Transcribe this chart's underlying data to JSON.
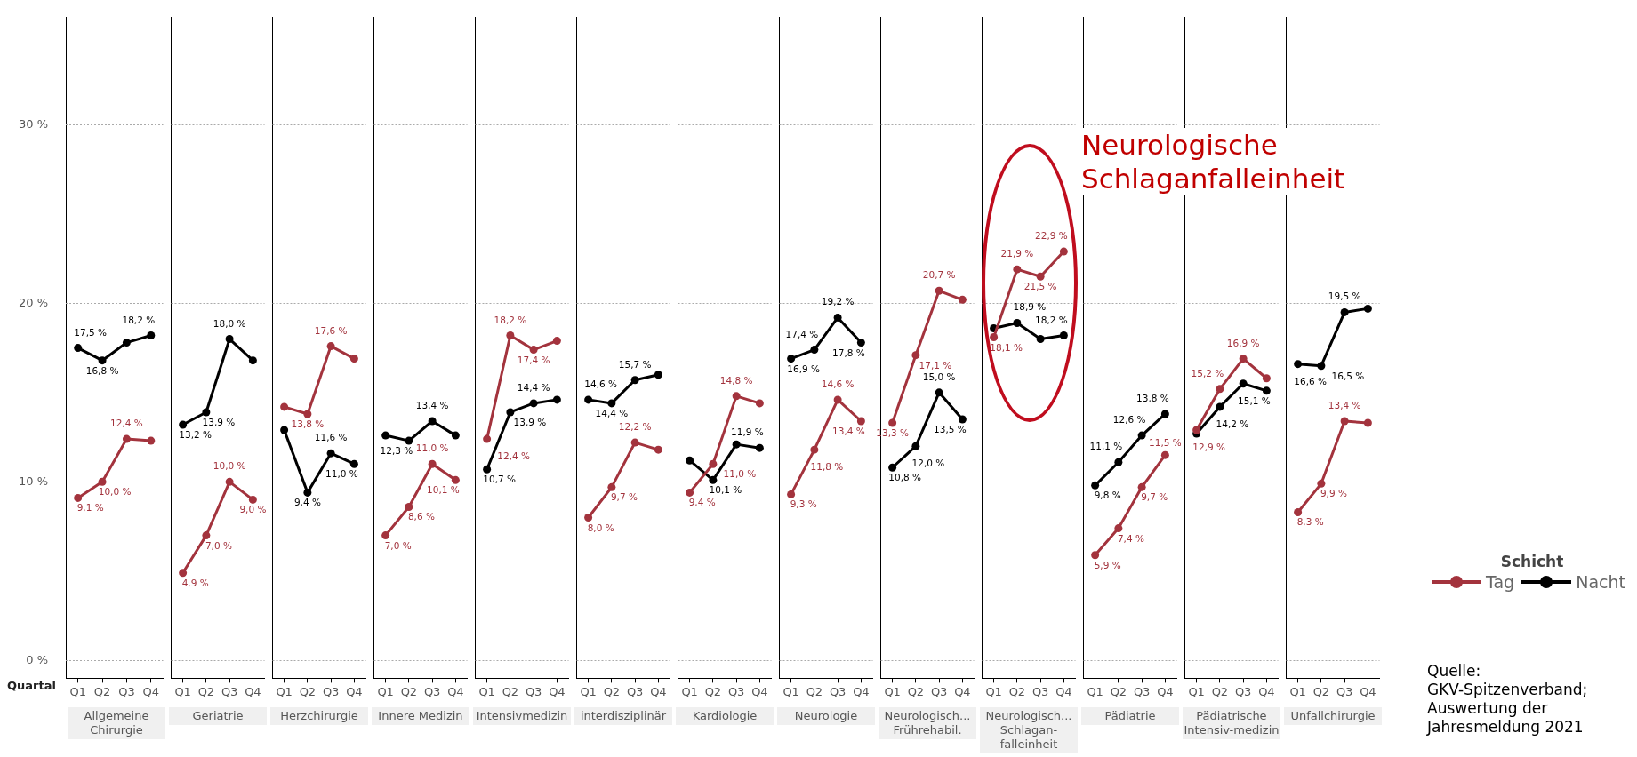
{
  "chart_data": [
    {
      "type": "line",
      "xlabel": "Allgemeine Chirurgie",
      "categories": [
        "Q1",
        "Q2",
        "Q3",
        "Q4"
      ],
      "ylim": [
        -1,
        36
      ],
      "yticks": [
        {
          "value": 0,
          "label": "0 %"
        },
        {
          "value": 10,
          "label": "10 %"
        },
        {
          "value": 20,
          "label": "20 %"
        },
        {
          "value": 30,
          "label": "30 %"
        }
      ],
      "grid": "y",
      "marker": "circle",
      "annotations": [
        "Quartal"
      ],
      "series": [
        {
          "color": "#a3333d",
          "values": [
            9.1,
            10.0,
            12.4,
            12.3
          ],
          "value_labels": [
            "9,1 %",
            "10,0 %",
            "12,4 %",
            null
          ]
        },
        {
          "color": "#000000",
          "values": [
            17.5,
            16.8,
            17.8,
            18.2
          ],
          "value_labels": [
            "17,5 %",
            "16,8 %",
            null,
            "18,2 %"
          ]
        }
      ]
    },
    {
      "type": "line",
      "xlabel": "Geriatrie",
      "categories": [
        "Q1",
        "Q2",
        "Q3",
        "Q4"
      ],
      "ylim": [
        -1,
        36
      ],
      "yticks": [
        0,
        10,
        20,
        30
      ],
      "grid": "y",
      "marker": "circle",
      "tick_labels": "x",
      "series": [
        {
          "color": "#a3333d",
          "values": [
            4.9,
            7.0,
            10.0,
            9.0
          ],
          "value_labels": [
            "4,9 %",
            "7,0 %",
            "10,0 %",
            "9,0 %"
          ]
        },
        {
          "color": "#000000",
          "values": [
            13.2,
            13.9,
            18.0,
            16.8
          ],
          "value_labels": [
            "13,2 %",
            "13,9 %",
            "18,0 %",
            null
          ]
        }
      ]
    },
    {
      "type": "line",
      "xlabel": "Herzchirurgie",
      "categories": [
        "Q1",
        "Q2",
        "Q3",
        "Q4"
      ],
      "ylim": [
        -1,
        36
      ],
      "yticks": [
        0,
        10,
        20,
        30
      ],
      "grid": "y",
      "marker": "circle",
      "tick_labels": "x",
      "series": [
        {
          "color": "#a3333d",
          "values": [
            14.2,
            13.8,
            17.6,
            16.9
          ],
          "value_labels": [
            null,
            "13,8 %",
            "17,6 %",
            null
          ]
        },
        {
          "color": "#000000",
          "values": [
            12.9,
            9.4,
            11.6,
            11.0
          ],
          "value_labels": [
            null,
            "9,4 %",
            "11,6 %",
            "11,0 %"
          ]
        }
      ]
    },
    {
      "type": "line",
      "xlabel": "Innere Medizin",
      "categories": [
        "Q1",
        "Q2",
        "Q3",
        "Q4"
      ],
      "ylim": [
        -1,
        36
      ],
      "yticks": [
        0,
        10,
        20,
        30
      ],
      "grid": "y",
      "marker": "circle",
      "tick_labels": "x",
      "series": [
        {
          "color": "#a3333d",
          "values": [
            7.0,
            8.6,
            11.0,
            10.1
          ],
          "value_labels": [
            "7,0 %",
            "8,6 %",
            "11,0 %",
            "10,1 %"
          ]
        },
        {
          "color": "#000000",
          "values": [
            12.6,
            12.3,
            13.4,
            12.6
          ],
          "value_labels": [
            null,
            "12,3 %",
            "13,4 %",
            null
          ]
        }
      ]
    },
    {
      "type": "line",
      "xlabel": "Intensivmedizin",
      "categories": [
        "Q1",
        "Q2",
        "Q3",
        "Q4"
      ],
      "ylim": [
        -1,
        36
      ],
      "yticks": [
        0,
        10,
        20,
        30
      ],
      "grid": "y",
      "marker": "circle",
      "tick_labels": "x",
      "series": [
        {
          "color": "#a3333d",
          "values": [
            12.4,
            18.2,
            17.4,
            17.9
          ],
          "value_labels": [
            "12,4 %",
            "18,2 %",
            "17,4 %",
            null
          ]
        },
        {
          "color": "#000000",
          "values": [
            10.7,
            13.9,
            14.4,
            14.6
          ],
          "value_labels": [
            "10,7 %",
            "13,9 %",
            "14,4 %",
            null
          ]
        }
      ]
    },
    {
      "type": "line",
      "xlabel": "interdisziplinär",
      "categories": [
        "Q1",
        "Q2",
        "Q3",
        "Q4"
      ],
      "ylim": [
        -1,
        36
      ],
      "yticks": [
        0,
        10,
        20,
        30
      ],
      "grid": "y",
      "marker": "circle",
      "tick_labels": "x",
      "series": [
        {
          "color": "#a3333d",
          "values": [
            8.0,
            9.7,
            12.2,
            11.8
          ],
          "value_labels": [
            "8,0 %",
            "9,7 %",
            "12,2 %",
            null
          ]
        },
        {
          "color": "#000000",
          "values": [
            14.6,
            14.4,
            15.7,
            16.0
          ],
          "value_labels": [
            "14,6 %",
            "14,4 %",
            "15,7 %",
            null
          ]
        }
      ]
    },
    {
      "type": "line",
      "xlabel": "Kardiologie",
      "categories": [
        "Q1",
        "Q2",
        "Q3",
        "Q4"
      ],
      "ylim": [
        -1,
        36
      ],
      "yticks": [
        0,
        10,
        20,
        30
      ],
      "grid": "y",
      "marker": "circle",
      "tick_labels": "x",
      "series": [
        {
          "color": "#a3333d",
          "values": [
            9.4,
            11.0,
            14.8,
            14.4
          ],
          "value_labels": [
            "9,4 %",
            "11,0 %",
            "14,8 %",
            null
          ]
        },
        {
          "color": "#000000",
          "values": [
            11.2,
            10.1,
            12.1,
            11.9
          ],
          "value_labels": [
            null,
            "10,1 %",
            null,
            "11,9 %"
          ]
        }
      ]
    },
    {
      "type": "line",
      "xlabel": "Neurologie",
      "categories": [
        "Q1",
        "Q2",
        "Q3",
        "Q4"
      ],
      "ylim": [
        -1,
        36
      ],
      "yticks": [
        0,
        10,
        20,
        30
      ],
      "grid": "y",
      "marker": "circle",
      "tick_labels": "x",
      "series": [
        {
          "color": "#a3333d",
          "values": [
            9.3,
            11.8,
            14.6,
            13.4
          ],
          "value_labels": [
            "9,3 %",
            "11,8 %",
            "14,6 %",
            "13,4 %"
          ]
        },
        {
          "color": "#000000",
          "values": [
            16.9,
            17.4,
            19.2,
            17.8
          ],
          "value_labels": [
            "16,9 %",
            "17,4 %",
            "19,2 %",
            "17,8 %"
          ]
        }
      ]
    },
    {
      "type": "line",
      "xlabel": "Neurologisch... Frührehabil.",
      "categories": [
        "Q1",
        "Q2",
        "Q3",
        "Q4"
      ],
      "ylim": [
        -1,
        36
      ],
      "yticks": [
        0,
        10,
        20,
        30
      ],
      "grid": "y",
      "marker": "circle",
      "tick_labels": "x",
      "series": [
        {
          "color": "#a3333d",
          "values": [
            13.3,
            17.1,
            20.7,
            20.2
          ],
          "value_labels": [
            "13,3 %",
            "17,1 %",
            "20,7 %",
            null
          ]
        },
        {
          "color": "#000000",
          "values": [
            10.8,
            12.0,
            15.0,
            13.5
          ],
          "value_labels": [
            "10,8 %",
            "12,0 %",
            "15,0 %",
            "13,5 %"
          ]
        }
      ]
    },
    {
      "type": "line",
      "xlabel": "Neurologisch... Schlagan-falleinheit",
      "categories": [
        "Q1",
        "Q2",
        "Q3",
        "Q4"
      ],
      "ylim": [
        -1,
        36
      ],
      "yticks": [
        0,
        10,
        20,
        30
      ],
      "grid": "y",
      "marker": "circle",
      "tick_labels": "x",
      "annotations": [
        "Neurologische Schlaganfalleinheit"
      ],
      "series": [
        {
          "color": "#a3333d",
          "values": [
            18.1,
            21.9,
            21.5,
            22.9
          ],
          "value_labels": [
            "18,1 %",
            "21,9 %",
            "21,5 %",
            "22,9 %"
          ]
        },
        {
          "color": "#000000",
          "values": [
            18.6,
            18.9,
            18.0,
            18.2
          ],
          "value_labels": [
            null,
            "18,9 %",
            null,
            "18,2 %"
          ]
        }
      ]
    },
    {
      "type": "line",
      "xlabel": "Pädiatrie",
      "categories": [
        "Q1",
        "Q2",
        "Q3",
        "Q4"
      ],
      "ylim": [
        -1,
        36
      ],
      "yticks": [
        0,
        10,
        20,
        30
      ],
      "grid": "y",
      "marker": "circle",
      "tick_labels": "x",
      "series": [
        {
          "color": "#a3333d",
          "values": [
            5.9,
            7.4,
            9.7,
            11.5
          ],
          "value_labels": [
            "5,9 %",
            "7,4 %",
            "9,7 %",
            "11,5 %"
          ]
        },
        {
          "color": "#000000",
          "values": [
            9.8,
            11.1,
            12.6,
            13.8
          ],
          "value_labels": [
            "9,8 %",
            "11,1 %",
            "12,6 %",
            "13,8 %"
          ]
        }
      ]
    },
    {
      "type": "line",
      "xlabel": "Pädiatrische Intensiv-medizin",
      "categories": [
        "Q1",
        "Q2",
        "Q3",
        "Q4"
      ],
      "ylim": [
        -1,
        36
      ],
      "yticks": [
        0,
        10,
        20,
        30
      ],
      "grid": "y",
      "marker": "circle",
      "tick_labels": "x",
      "series": [
        {
          "color": "#a3333d",
          "values": [
            12.9,
            15.2,
            16.9,
            15.8
          ],
          "value_labels": [
            "12,9 %",
            "15,2 %",
            "16,9 %",
            null
          ]
        },
        {
          "color": "#000000",
          "values": [
            12.7,
            14.2,
            15.5,
            15.1
          ],
          "value_labels": [
            null,
            "14,2 %",
            null,
            "15,1 %"
          ]
        }
      ]
    },
    {
      "type": "line",
      "xlabel": "Unfallchirurgie",
      "categories": [
        "Q1",
        "Q2",
        "Q3",
        "Q4"
      ],
      "ylim": [
        -1,
        36
      ],
      "yticks": [
        0,
        10,
        20,
        30
      ],
      "grid": "y",
      "marker": "circle",
      "tick_labels": "x",
      "legend": "right",
      "legend_title": "Schicht",
      "annotations": [
        "Quelle: GKV-Spitzenverband; Auswertung der Jahresmeldung 2021"
      ],
      "series": [
        {
          "name": "Tag",
          "color": "#a3333d",
          "values": [
            8.3,
            9.9,
            13.4,
            13.3
          ],
          "value_labels": [
            "8,3 %",
            "9,9 %",
            "13,4 %",
            null
          ]
        },
        {
          "name": "Nacht",
          "color": "#000000",
          "values": [
            16.6,
            16.5,
            19.5,
            19.7
          ],
          "value_labels": [
            "16,6 %",
            "16,5 %",
            "19,5 %",
            null
          ]
        }
      ]
    }
  ]
}
